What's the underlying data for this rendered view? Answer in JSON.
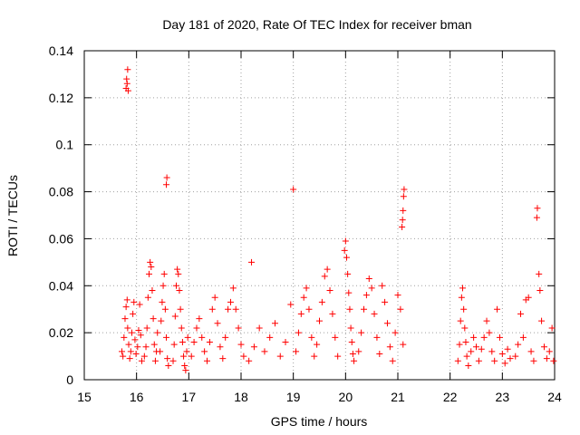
{
  "chart_data": {
    "type": "scatter",
    "title": "Day 181 of 2020, Rate Of TEC Index for receiver bman",
    "xlabel": "GPS time / hours",
    "ylabel": "ROTI / TECUs",
    "xlim": [
      15,
      24
    ],
    "ylim": [
      0,
      0.14
    ],
    "xticks": [
      15,
      16,
      17,
      18,
      19,
      20,
      21,
      22,
      23,
      24
    ],
    "xtick_labels": [
      "15",
      "16",
      "17",
      "18",
      "19",
      "20",
      "21",
      "22",
      "23",
      "24"
    ],
    "yticks": [
      0,
      0.02,
      0.04,
      0.06,
      0.08,
      0.1,
      0.12,
      0.14
    ],
    "ytick_labels": [
      "0",
      "0.02",
      "0.04",
      "0.06",
      "0.08",
      "0.1",
      "0.12",
      "0.14"
    ],
    "grid": true,
    "legend": "none",
    "marker": "plus",
    "color": "#ff0000",
    "series": [
      {
        "name": "ROTI",
        "points": [
          [
            15.72,
            0.012
          ],
          [
            15.74,
            0.01
          ],
          [
            15.76,
            0.018
          ],
          [
            15.78,
            0.026
          ],
          [
            15.8,
            0.031
          ],
          [
            15.82,
            0.034
          ],
          [
            15.83,
            0.022
          ],
          [
            15.85,
            0.015
          ],
          [
            15.87,
            0.009
          ],
          [
            15.89,
            0.012
          ],
          [
            15.91,
            0.02
          ],
          [
            15.93,
            0.028
          ],
          [
            15.95,
            0.033
          ],
          [
            15.97,
            0.017
          ],
          [
            15.99,
            0.011
          ],
          [
            16.02,
            0.014
          ],
          [
            16.04,
            0.021
          ],
          [
            16.06,
            0.032
          ],
          [
            16.08,
            0.019
          ],
          [
            16.1,
            0.008
          ],
          [
            15.8,
            0.124
          ],
          [
            15.82,
            0.126
          ],
          [
            15.84,
            0.123
          ],
          [
            15.81,
            0.128
          ],
          [
            15.83,
            0.132
          ],
          [
            16.15,
            0.01
          ],
          [
            16.18,
            0.014
          ],
          [
            16.2,
            0.022
          ],
          [
            16.22,
            0.035
          ],
          [
            16.24,
            0.045
          ],
          [
            16.26,
            0.05
          ],
          [
            16.28,
            0.048
          ],
          [
            16.3,
            0.038
          ],
          [
            16.32,
            0.026
          ],
          [
            16.34,
            0.015
          ],
          [
            16.36,
            0.008
          ],
          [
            16.38,
            0.012
          ],
          [
            16.4,
            0.02
          ],
          [
            16.45,
            0.012
          ],
          [
            16.47,
            0.025
          ],
          [
            16.49,
            0.033
          ],
          [
            16.51,
            0.04
          ],
          [
            16.53,
            0.045
          ],
          [
            16.55,
            0.03
          ],
          [
            16.57,
            0.018
          ],
          [
            16.59,
            0.009
          ],
          [
            16.61,
            0.006
          ],
          [
            16.57,
            0.083
          ],
          [
            16.58,
            0.086
          ],
          [
            16.7,
            0.008
          ],
          [
            16.72,
            0.015
          ],
          [
            16.74,
            0.027
          ],
          [
            16.76,
            0.04
          ],
          [
            16.78,
            0.047
          ],
          [
            16.8,
            0.045
          ],
          [
            16.82,
            0.038
          ],
          [
            16.84,
            0.03
          ],
          [
            16.86,
            0.022
          ],
          [
            16.88,
            0.016
          ],
          [
            16.9,
            0.01
          ],
          [
            16.92,
            0.006
          ],
          [
            16.94,
            0.004
          ],
          [
            16.96,
            0.012
          ],
          [
            16.98,
            0.018
          ],
          [
            17.05,
            0.01
          ],
          [
            17.1,
            0.016
          ],
          [
            17.15,
            0.022
          ],
          [
            17.2,
            0.026
          ],
          [
            17.25,
            0.018
          ],
          [
            17.3,
            0.012
          ],
          [
            17.35,
            0.008
          ],
          [
            17.4,
            0.016
          ],
          [
            17.45,
            0.03
          ],
          [
            17.5,
            0.035
          ],
          [
            17.55,
            0.024
          ],
          [
            17.6,
            0.014
          ],
          [
            17.65,
            0.009
          ],
          [
            17.7,
            0.018
          ],
          [
            17.75,
            0.03
          ],
          [
            17.8,
            0.033
          ],
          [
            17.85,
            0.039
          ],
          [
            17.9,
            0.03
          ],
          [
            17.95,
            0.022
          ],
          [
            18.0,
            0.015
          ],
          [
            18.05,
            0.01
          ],
          [
            18.2,
            0.05
          ],
          [
            18.15,
            0.008
          ],
          [
            18.25,
            0.014
          ],
          [
            18.35,
            0.022
          ],
          [
            18.45,
            0.012
          ],
          [
            18.55,
            0.018
          ],
          [
            18.65,
            0.024
          ],
          [
            18.75,
            0.01
          ],
          [
            18.85,
            0.016
          ],
          [
            18.95,
            0.032
          ],
          [
            19.0,
            0.081
          ],
          [
            19.05,
            0.012
          ],
          [
            19.1,
            0.02
          ],
          [
            19.15,
            0.028
          ],
          [
            19.2,
            0.035
          ],
          [
            19.25,
            0.039
          ],
          [
            19.3,
            0.03
          ],
          [
            19.35,
            0.018
          ],
          [
            19.4,
            0.01
          ],
          [
            19.45,
            0.015
          ],
          [
            19.5,
            0.025
          ],
          [
            19.55,
            0.033
          ],
          [
            19.6,
            0.044
          ],
          [
            19.65,
            0.047
          ],
          [
            19.7,
            0.038
          ],
          [
            19.75,
            0.028
          ],
          [
            19.8,
            0.018
          ],
          [
            19.85,
            0.01
          ],
          [
            19.98,
            0.055
          ],
          [
            20.0,
            0.059
          ],
          [
            20.02,
            0.052
          ],
          [
            20.04,
            0.045
          ],
          [
            20.06,
            0.037
          ],
          [
            20.08,
            0.03
          ],
          [
            20.1,
            0.022
          ],
          [
            20.12,
            0.016
          ],
          [
            20.14,
            0.011
          ],
          [
            20.16,
            0.008
          ],
          [
            20.25,
            0.012
          ],
          [
            20.3,
            0.02
          ],
          [
            20.35,
            0.03
          ],
          [
            20.4,
            0.036
          ],
          [
            20.45,
            0.043
          ],
          [
            20.5,
            0.039
          ],
          [
            20.55,
            0.028
          ],
          [
            20.6,
            0.018
          ],
          [
            20.65,
            0.011
          ],
          [
            20.7,
            0.04
          ],
          [
            20.75,
            0.033
          ],
          [
            20.8,
            0.024
          ],
          [
            20.85,
            0.014
          ],
          [
            20.9,
            0.008
          ],
          [
            20.95,
            0.02
          ],
          [
            21.0,
            0.036
          ],
          [
            21.05,
            0.03
          ],
          [
            21.1,
            0.015
          ],
          [
            21.08,
            0.065
          ],
          [
            21.09,
            0.068
          ],
          [
            21.1,
            0.072
          ],
          [
            21.11,
            0.078
          ],
          [
            21.12,
            0.081
          ],
          [
            22.15,
            0.008
          ],
          [
            22.18,
            0.015
          ],
          [
            22.2,
            0.025
          ],
          [
            22.22,
            0.035
          ],
          [
            22.24,
            0.039
          ],
          [
            22.26,
            0.03
          ],
          [
            22.28,
            0.022
          ],
          [
            22.3,
            0.016
          ],
          [
            22.32,
            0.01
          ],
          [
            22.35,
            0.006
          ],
          [
            22.4,
            0.012
          ],
          [
            22.45,
            0.018
          ],
          [
            22.5,
            0.014
          ],
          [
            22.55,
            0.008
          ],
          [
            22.6,
            0.013
          ],
          [
            22.65,
            0.018
          ],
          [
            22.7,
            0.025
          ],
          [
            22.75,
            0.02
          ],
          [
            22.8,
            0.012
          ],
          [
            22.85,
            0.008
          ],
          [
            22.9,
            0.03
          ],
          [
            22.95,
            0.018
          ],
          [
            23.0,
            0.011
          ],
          [
            23.05,
            0.007
          ],
          [
            23.1,
            0.013
          ],
          [
            23.15,
            0.009
          ],
          [
            23.25,
            0.01
          ],
          [
            23.3,
            0.015
          ],
          [
            23.35,
            0.028
          ],
          [
            23.4,
            0.018
          ],
          [
            23.45,
            0.034
          ],
          [
            23.5,
            0.035
          ],
          [
            23.55,
            0.012
          ],
          [
            23.6,
            0.008
          ],
          [
            23.66,
            0.069
          ],
          [
            23.67,
            0.073
          ],
          [
            23.7,
            0.045
          ],
          [
            23.72,
            0.038
          ],
          [
            23.75,
            0.025
          ],
          [
            23.8,
            0.014
          ],
          [
            23.85,
            0.009
          ],
          [
            23.9,
            0.012
          ],
          [
            23.95,
            0.022
          ],
          [
            23.98,
            0.008
          ]
        ]
      }
    ]
  }
}
